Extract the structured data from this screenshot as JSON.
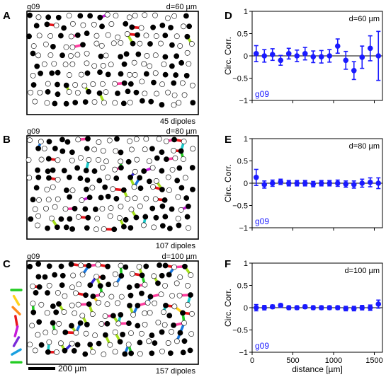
{
  "figure": {
    "left_panels": [
      {
        "letter": "A",
        "id_label": "g09",
        "d_label": "d=60 µm",
        "count_label": "45 dipoles",
        "seed": 11,
        "density": "low"
      },
      {
        "letter": "B",
        "id_label": "g09",
        "d_label": "d=80 µm",
        "count_label": "107 dipoles",
        "seed": 23,
        "density": "mid"
      },
      {
        "letter": "C",
        "id_label": "g09",
        "d_label": "d=100 µm",
        "count_label": "157 dipoles",
        "seed": 37,
        "density": "high"
      }
    ],
    "scale_bar_label": "200 µm",
    "orientation_key_colors": [
      "#22cc22",
      "#ffd21a",
      "#ff8a1a",
      "#e8151b",
      "#c61ad9",
      "#7b2bd9",
      "#1aa0e0",
      "#22cc22"
    ],
    "dipole_colors": [
      "#e8151b",
      "#ff8a1a",
      "#ffd21a",
      "#a5e01a",
      "#22cc22",
      "#1ac8c8",
      "#1a78e0",
      "#3a2bd9",
      "#c61ad9",
      "#ff3fa0"
    ]
  },
  "chart_data": [
    {
      "type": "scatter",
      "letter": "D",
      "title": "d=60 µm",
      "watermark": "g09",
      "xlabel": "",
      "ylabel": "Circ. Corr.",
      "xlim": [
        0,
        1600
      ],
      "ylim": [
        -1,
        1
      ],
      "xticks": [
        0,
        500,
        1000,
        1500
      ],
      "xtick_labels": [
        "",
        "",
        "",
        ""
      ],
      "yticks": [
        -1,
        -0.5,
        0,
        0.5,
        1
      ],
      "ytick_labels": [
        "−1",
        "−0.5",
        "0",
        "0.5",
        "1"
      ],
      "color": "#1a1aff",
      "x": [
        50,
        150,
        250,
        350,
        450,
        550,
        650,
        750,
        850,
        950,
        1050,
        1150,
        1250,
        1350,
        1450,
        1550
      ],
      "y": [
        0.05,
        0.0,
        0.03,
        -0.1,
        0.05,
        0.0,
        0.05,
        -0.02,
        -0.02,
        0.0,
        0.22,
        -0.1,
        -0.33,
        -0.03,
        0.17,
        0.0
      ],
      "err": [
        0.18,
        0.14,
        0.13,
        0.11,
        0.12,
        0.13,
        0.14,
        0.13,
        0.14,
        0.14,
        0.16,
        0.2,
        0.2,
        0.25,
        0.28,
        0.55
      ]
    },
    {
      "type": "scatter",
      "letter": "E",
      "title": "d=80 µm",
      "watermark": "g09",
      "xlabel": "",
      "ylabel": "Circ. Corr.",
      "xlim": [
        0,
        1600
      ],
      "ylim": [
        -1,
        1
      ],
      "xticks": [
        0,
        500,
        1000,
        1500
      ],
      "xtick_labels": [
        "",
        "",
        "",
        ""
      ],
      "yticks": [
        -1,
        -0.5,
        0,
        0.5,
        1
      ],
      "ytick_labels": [
        "−1",
        "−0.5",
        "0",
        "0.5",
        "1"
      ],
      "color": "#1a1aff",
      "x": [
        50,
        150,
        250,
        350,
        450,
        550,
        650,
        750,
        850,
        950,
        1050,
        1150,
        1250,
        1350,
        1450,
        1550
      ],
      "y": [
        0.13,
        -0.03,
        0.0,
        0.03,
        0.0,
        0.0,
        0.0,
        -0.02,
        0.0,
        0.0,
        0.0,
        -0.02,
        -0.03,
        0.0,
        0.02,
        0.0
      ],
      "err": [
        0.18,
        0.08,
        0.07,
        0.06,
        0.06,
        0.06,
        0.06,
        0.06,
        0.06,
        0.06,
        0.07,
        0.07,
        0.08,
        0.09,
        0.1,
        0.12
      ]
    },
    {
      "type": "scatter",
      "letter": "F",
      "title": "d=100 µm",
      "watermark": "g09",
      "xlabel": "distance [µm]",
      "ylabel": "Circ. Corr.",
      "xlim": [
        0,
        1600
      ],
      "ylim": [
        -1,
        1
      ],
      "xticks": [
        0,
        500,
        1000,
        1500
      ],
      "xtick_labels": [
        "0",
        "500",
        "1000",
        "1500"
      ],
      "yticks": [
        -1,
        -0.5,
        0,
        0.5,
        1
      ],
      "ytick_labels": [
        "−1",
        "−0.5",
        "0",
        "0.5",
        "1"
      ],
      "color": "#1a1aff",
      "x": [
        50,
        150,
        250,
        350,
        450,
        550,
        650,
        750,
        850,
        950,
        1050,
        1150,
        1250,
        1350,
        1450,
        1550
      ],
      "y": [
        0.0,
        0.0,
        0.02,
        0.05,
        0.0,
        0.0,
        0.02,
        0.0,
        0.0,
        0.0,
        0.0,
        -0.02,
        -0.02,
        0.0,
        0.0,
        0.08
      ],
      "err": [
        0.07,
        0.05,
        0.04,
        0.04,
        0.04,
        0.04,
        0.04,
        0.04,
        0.04,
        0.04,
        0.04,
        0.05,
        0.05,
        0.05,
        0.06,
        0.09
      ]
    }
  ]
}
